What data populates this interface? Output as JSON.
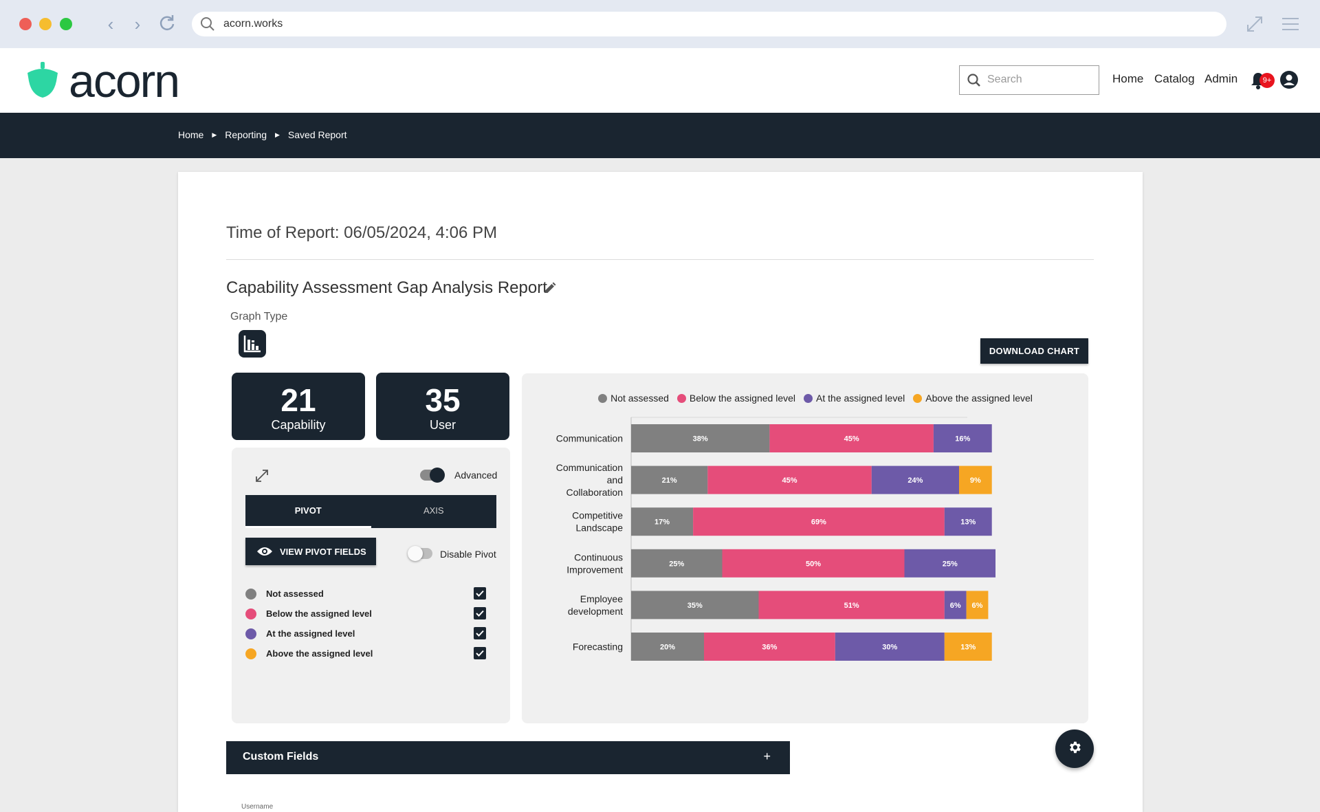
{
  "browser": {
    "url": "acorn.works"
  },
  "header": {
    "logo_text": "acorn",
    "search_placeholder": "Search",
    "nav": [
      "Home",
      "Catalog",
      "Admin"
    ],
    "notification_badge": "9+"
  },
  "breadcrumb": [
    "Home",
    "Reporting",
    "Saved Report"
  ],
  "report": {
    "time_label": "Time of Report: 06/05/2024, 4:06 PM",
    "title": "Capability Assessment Gap Analysis Report",
    "graph_type_label": "Graph Type",
    "download_label": "DOWNLOAD CHART"
  },
  "stats": [
    {
      "value": "21",
      "label": "Capability"
    },
    {
      "value": "35",
      "label": "User"
    }
  ],
  "controls": {
    "advanced_label": "Advanced",
    "advanced_on": true,
    "tabs": [
      "PIVOT",
      "AXIS"
    ],
    "active_tab": "PIVOT",
    "view_pivot_label": "VIEW PIVOT FIELDS",
    "disable_pivot_label": "Disable Pivot",
    "disable_pivot_on": false,
    "fields": [
      {
        "label": "Not assessed",
        "color": "#808080",
        "checked": true
      },
      {
        "label": "Below the assigned level",
        "color": "#e54d7a",
        "checked": true
      },
      {
        "label": "At the assigned level",
        "color": "#6d5aa8",
        "checked": true
      },
      {
        "label": "Above the assigned level",
        "color": "#f6a623",
        "checked": true
      }
    ]
  },
  "chart_data": {
    "type": "bar",
    "orientation": "horizontal",
    "stacked": true,
    "legend_position": "top-center",
    "grid": true,
    "categories": [
      [
        "Communication"
      ],
      [
        "Communication",
        "and",
        "Collaboration"
      ],
      [
        "Competitive",
        "Landscape"
      ],
      [
        "Continuous",
        "Improvement"
      ],
      [
        "Employee",
        "development"
      ],
      [
        "Forecasting"
      ]
    ],
    "series": [
      {
        "name": "Not assessed",
        "color": "#808080",
        "values": [
          38,
          21,
          17,
          25,
          35,
          20
        ]
      },
      {
        "name": "Below the assigned level",
        "color": "#e54d7a",
        "values": [
          45,
          45,
          69,
          50,
          51,
          36
        ]
      },
      {
        "name": "At the assigned level",
        "color": "#6d5aa8",
        "values": [
          16,
          24,
          13,
          25,
          6,
          30
        ]
      },
      {
        "name": "Above the assigned level",
        "color": "#f6a623",
        "values": [
          0,
          9,
          0,
          0,
          6,
          13
        ]
      }
    ],
    "xlim": [
      0,
      100
    ],
    "value_suffix": "%"
  },
  "custom_fields": {
    "title": "Custom Fields",
    "toggle": "+"
  },
  "table_preview": {
    "first_header": "Username"
  }
}
